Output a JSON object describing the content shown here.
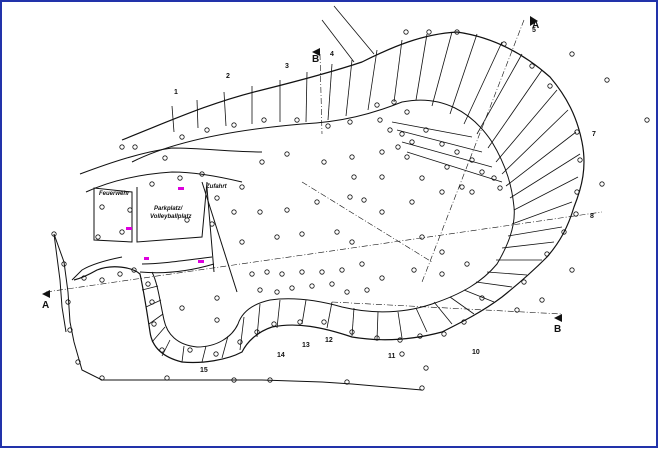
{
  "drawing": {
    "border_color": "#2233aa",
    "line_color": "#111111",
    "highlight_color": "#dd00dd",
    "labels": {
      "zone_1": "Zufahrt",
      "zone_2": "Feuerwehr",
      "zone_3_line1": "Parkplatz/",
      "zone_3_line2": "Volleyballplatz"
    },
    "sections": {
      "s1": "1",
      "s2": "2",
      "s3": "3",
      "s4": "4",
      "s7": "7",
      "s11": "11",
      "s12": "12",
      "s13": "13",
      "s14": "14",
      "s15": "15",
      "s10": "10",
      "s8": "8",
      "s5": "5"
    },
    "section_markers": {
      "A_left": "A",
      "A_top": "A",
      "B_top": "B",
      "B_bottom": "B"
    },
    "marker_icon": "section-arrow-icon",
    "survey_point_icon": "survey-point-icon"
  }
}
